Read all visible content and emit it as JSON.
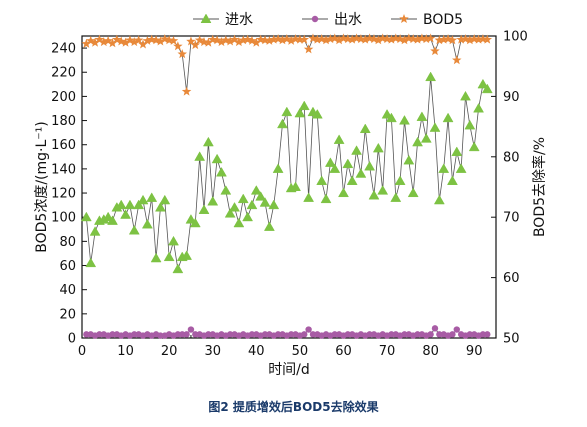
{
  "caption": "图2 提质增效后BOD5去除效果",
  "chart_data": {
    "type": "line",
    "title": "",
    "xlabel": "时间/d",
    "ylabel_left": "BOD5浓度/(mg·L⁻¹)",
    "ylabel_right": "BOD5去除率/%",
    "xlim": [
      0,
      95
    ],
    "ylim_left": [
      0,
      250
    ],
    "ylim_right": [
      50,
      100
    ],
    "x_ticks": [
      0,
      10,
      20,
      30,
      40,
      50,
      60,
      70,
      80,
      90
    ],
    "y_ticks_left": [
      0,
      20,
      40,
      60,
      80,
      100,
      120,
      140,
      160,
      180,
      200,
      220,
      240
    ],
    "y_ticks_right": [
      50,
      60,
      70,
      80,
      90,
      100
    ],
    "grid": false,
    "legend_position": "top",
    "series": [
      {
        "name": "进水",
        "axis": "left",
        "marker": "triangle",
        "color": "#7dc243",
        "x": [
          1,
          2,
          3,
          4,
          5,
          6,
          7,
          8,
          9,
          10,
          11,
          12,
          13,
          14,
          15,
          16,
          17,
          18,
          19,
          20,
          21,
          22,
          23,
          24,
          25,
          26,
          27,
          28,
          29,
          30,
          31,
          32,
          33,
          34,
          35,
          36,
          37,
          38,
          39,
          40,
          41,
          42,
          43,
          44,
          45,
          46,
          47,
          48,
          49,
          50,
          51,
          52,
          53,
          54,
          55,
          56,
          57,
          58,
          59,
          60,
          61,
          62,
          63,
          64,
          65,
          66,
          67,
          68,
          69,
          70,
          71,
          72,
          73,
          74,
          75,
          76,
          77,
          78,
          79,
          80,
          81,
          82,
          83,
          84,
          85,
          86,
          87,
          88,
          89,
          90,
          91,
          92,
          93
        ],
        "y": [
          100,
          62,
          88,
          97,
          98,
          100,
          97,
          108,
          110,
          102,
          110,
          89,
          110,
          114,
          94,
          116,
          66,
          108,
          114,
          67,
          80,
          57,
          67,
          68,
          98,
          95,
          150,
          106,
          162,
          113,
          148,
          137,
          122,
          103,
          108,
          95,
          115,
          100,
          110,
          122,
          117,
          112,
          92,
          110,
          140,
          177,
          187,
          124,
          125,
          186,
          192,
          116,
          187,
          185,
          130,
          115,
          145,
          140,
          164,
          120,
          144,
          130,
          155,
          136,
          173,
          142,
          118,
          157,
          122,
          185,
          182,
          116,
          130,
          180,
          147,
          120,
          162,
          183,
          165,
          216,
          174,
          114,
          140,
          182,
          130,
          154,
          140,
          200,
          176,
          158,
          190,
          210,
          206
        ]
      },
      {
        "name": "出水",
        "axis": "left",
        "marker": "circle",
        "color": "#a85ca5",
        "x": [
          1,
          2,
          3,
          4,
          5,
          6,
          7,
          8,
          9,
          10,
          11,
          12,
          13,
          14,
          15,
          16,
          17,
          18,
          19,
          20,
          21,
          22,
          23,
          24,
          25,
          26,
          27,
          28,
          29,
          30,
          31,
          32,
          33,
          34,
          35,
          36,
          37,
          38,
          39,
          40,
          41,
          42,
          43,
          44,
          45,
          46,
          47,
          48,
          49,
          50,
          51,
          52,
          53,
          54,
          55,
          56,
          57,
          58,
          59,
          60,
          61,
          62,
          63,
          64,
          65,
          66,
          67,
          68,
          69,
          70,
          71,
          72,
          73,
          74,
          75,
          76,
          77,
          78,
          79,
          80,
          81,
          82,
          83,
          84,
          85,
          86,
          87,
          88,
          89,
          90,
          91,
          92,
          93
        ],
        "y": [
          3,
          3,
          2,
          3,
          3,
          2,
          3,
          3,
          2,
          3,
          2,
          3,
          3,
          2,
          3,
          2,
          3,
          2,
          2,
          3,
          2,
          3,
          3,
          3,
          7,
          3,
          3,
          2,
          3,
          3,
          2,
          3,
          2,
          3,
          3,
          2,
          3,
          2,
          3,
          3,
          2,
          3,
          3,
          2,
          3,
          3,
          2,
          3,
          3,
          2,
          3,
          7,
          3,
          3,
          2,
          3,
          2,
          3,
          3,
          2,
          3,
          3,
          2,
          3,
          2,
          3,
          3,
          2,
          3,
          2,
          3,
          3,
          2,
          3,
          3,
          2,
          3,
          3,
          2,
          3,
          8,
          3,
          3,
          2,
          3,
          7,
          3,
          2,
          3,
          3,
          2,
          3,
          3
        ]
      },
      {
        "name": "BOD5",
        "axis": "right",
        "marker": "star",
        "color": "#e8893a",
        "x": [
          1,
          2,
          3,
          4,
          5,
          6,
          7,
          8,
          9,
          10,
          11,
          12,
          13,
          14,
          15,
          16,
          17,
          18,
          19,
          20,
          21,
          22,
          23,
          24,
          25,
          26,
          27,
          28,
          29,
          30,
          31,
          32,
          33,
          34,
          35,
          36,
          37,
          38,
          39,
          40,
          41,
          42,
          43,
          44,
          45,
          46,
          47,
          48,
          49,
          50,
          51,
          52,
          53,
          54,
          55,
          56,
          57,
          58,
          59,
          60,
          61,
          62,
          63,
          64,
          65,
          66,
          67,
          68,
          69,
          70,
          71,
          72,
          73,
          74,
          75,
          76,
          77,
          78,
          79,
          80,
          81,
          82,
          83,
          84,
          85,
          86,
          87,
          88,
          89,
          90,
          91,
          92,
          93
        ],
        "y": [
          98.7,
          99.2,
          98.9,
          99.4,
          99.0,
          99.2,
          98.8,
          99.4,
          99.1,
          98.9,
          99.3,
          99.0,
          99.3,
          98.6,
          99.2,
          99.4,
          99.3,
          99.1,
          99.5,
          99.3,
          99.2,
          98.3,
          97.0,
          90.8,
          99.1,
          98.5,
          99.3,
          99.0,
          98.9,
          99.4,
          99.3,
          99.0,
          99.3,
          99.1,
          99.4,
          99.0,
          99.3,
          99.4,
          99.2,
          98.9,
          99.4,
          99.3,
          99.2,
          99.4,
          99.5,
          99.3,
          99.5,
          99.2,
          99.5,
          99.4,
          99.4,
          97.8,
          99.6,
          99.4,
          99.5,
          99.3,
          99.5,
          99.6,
          99.3,
          99.6,
          99.5,
          99.4,
          99.6,
          99.5,
          99.4,
          99.6,
          99.5,
          99.3,
          99.6,
          99.5,
          99.4,
          99.6,
          99.5,
          99.3,
          99.6,
          99.5,
          99.4,
          99.6,
          99.5,
          99.6,
          97.5,
          99.3,
          99.4,
          99.5,
          99.3,
          96.0,
          99.4,
          99.5,
          99.3,
          99.5,
          99.4,
          99.5,
          99.4
        ]
      }
    ]
  }
}
